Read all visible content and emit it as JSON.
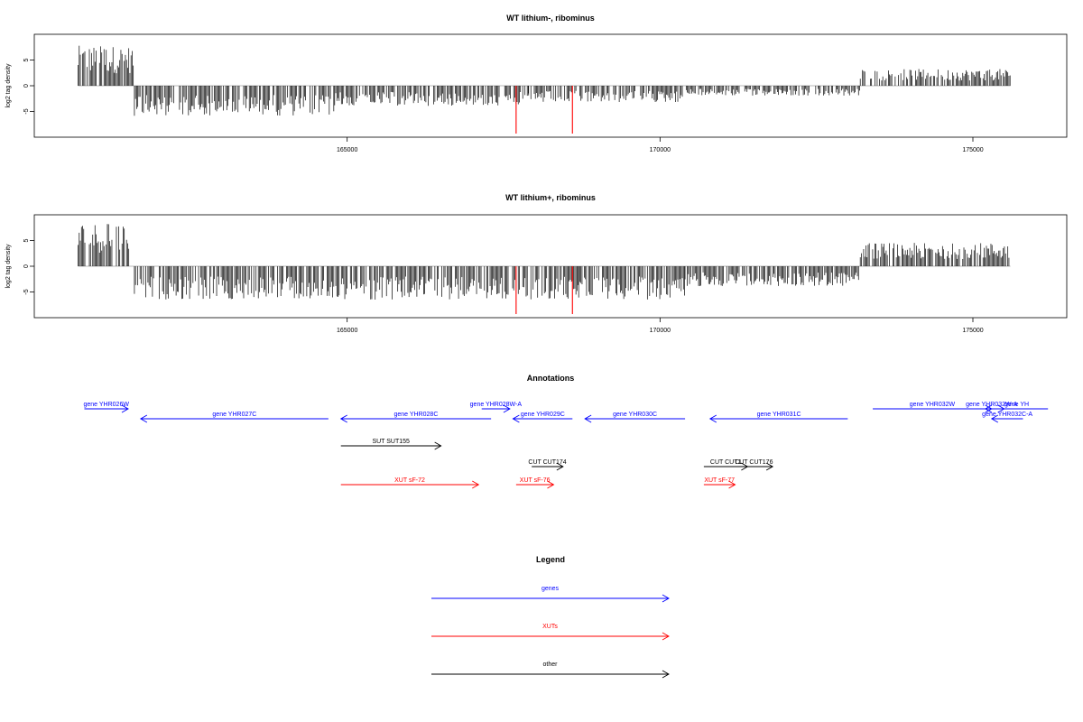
{
  "chart_data": [
    {
      "type": "bar",
      "title": "WT lithium-, ribominus",
      "ylabel": "log2 tag density",
      "xlim": [
        160000,
        176500
      ],
      "ylim": [
        -10,
        10
      ],
      "xticks": [
        165000,
        170000,
        175000
      ],
      "yticks": [
        -5,
        0,
        5
      ],
      "regions": [
        {
          "start": 160700,
          "end": 161600,
          "value": 6.0
        },
        {
          "start": 161600,
          "end": 164800,
          "value": -4.5
        },
        {
          "start": 164800,
          "end": 167900,
          "value": -3.0
        },
        {
          "start": 167900,
          "end": 168700,
          "value": -2.5
        },
        {
          "start": 168700,
          "end": 170400,
          "value": -2.5
        },
        {
          "start": 170400,
          "end": 173200,
          "value": -1.5
        },
        {
          "start": 173200,
          "end": 175600,
          "value": 2.5
        }
      ],
      "highlights": [
        {
          "x": 167700,
          "value": -9.3,
          "color": "#ff0000"
        },
        {
          "x": 168600,
          "value": -9.3,
          "color": "#ff0000"
        }
      ]
    },
    {
      "type": "bar",
      "title": "WT lithium+, ribominus",
      "ylabel": "log2 tag density",
      "xlim": [
        160000,
        176500
      ],
      "ylim": [
        -10,
        10
      ],
      "xticks": [
        165000,
        170000,
        175000
      ],
      "yticks": [
        -5,
        0,
        5
      ],
      "regions": [
        {
          "start": 160700,
          "end": 161600,
          "value": 6.5
        },
        {
          "start": 161600,
          "end": 164800,
          "value": -5.0
        },
        {
          "start": 164800,
          "end": 167900,
          "value": -5.0
        },
        {
          "start": 167900,
          "end": 168700,
          "value": -5.0
        },
        {
          "start": 168700,
          "end": 170400,
          "value": -5.0
        },
        {
          "start": 170400,
          "end": 173200,
          "value": -3.0
        },
        {
          "start": 173200,
          "end": 175600,
          "value": 3.5
        }
      ],
      "highlights": [
        {
          "x": 167700,
          "value": -9.3,
          "color": "#ff0000"
        },
        {
          "x": 168600,
          "value": -9.3,
          "color": "#ff0000"
        }
      ]
    }
  ],
  "annotations": {
    "title": "Annotations",
    "colors": {
      "genes": "#0000ff",
      "XUTs": "#ff0000",
      "other": "#000000"
    },
    "features": [
      {
        "label": "gene YHR026W",
        "start": 160800,
        "end": 161500,
        "strand": "+",
        "row": 0,
        "type": "genes"
      },
      {
        "label": "gene YHR027C",
        "start": 161700,
        "end": 164700,
        "strand": "-",
        "row": 1,
        "type": "genes"
      },
      {
        "label": "gene YHR028W-A",
        "start": 167150,
        "end": 167600,
        "strand": "+",
        "row": 0,
        "type": "genes"
      },
      {
        "label": "gene YHR028C",
        "start": 164900,
        "end": 167300,
        "strand": "-",
        "row": 1,
        "type": "genes"
      },
      {
        "label": "gene YHR029C",
        "start": 167650,
        "end": 168600,
        "strand": "-",
        "row": 1,
        "type": "genes"
      },
      {
        "label": "gene YHR030C",
        "start": 168800,
        "end": 170400,
        "strand": "-",
        "row": 1,
        "type": "genes"
      },
      {
        "label": "gene YHR031C",
        "start": 170800,
        "end": 173000,
        "strand": "-",
        "row": 1,
        "type": "genes"
      },
      {
        "label": "gene YHR032W",
        "start": 173400,
        "end": 175300,
        "strand": "+",
        "row": 0,
        "type": "genes"
      },
      {
        "label": "gene YHR032W-A",
        "start": 175100,
        "end": 175500,
        "strand": "+",
        "row": 0,
        "type": "genes"
      },
      {
        "label": "gene YH",
        "start": 175200,
        "end": 176200,
        "strand": "-",
        "row": 0,
        "type": "genes"
      },
      {
        "label": "gene YHR032C-A",
        "start": 175300,
        "end": 175800,
        "strand": "-",
        "row": 1,
        "type": "genes"
      },
      {
        "label": "SUT SUT155",
        "start": 164900,
        "end": 166500,
        "strand": "+",
        "row": 2,
        "type": "other"
      },
      {
        "label": "CUT CUT174",
        "start": 167950,
        "end": 168450,
        "strand": "+",
        "row": 3,
        "type": "other"
      },
      {
        "label": "CUT CUT1",
        "start": 170700,
        "end": 171400,
        "strand": "+",
        "row": 3,
        "type": "other"
      },
      {
        "label": "CUT CUT176",
        "start": 171200,
        "end": 171800,
        "strand": "+",
        "row": 3,
        "type": "other"
      },
      {
        "label": "XUT sF-72",
        "start": 164900,
        "end": 167100,
        "strand": "+",
        "row": 4,
        "type": "XUTs"
      },
      {
        "label": "XUT sF-76",
        "start": 167700,
        "end": 168300,
        "strand": "+",
        "row": 4,
        "type": "XUTs"
      },
      {
        "label": "XUT sF-77",
        "start": 170700,
        "end": 171200,
        "strand": "+",
        "row": 4,
        "type": "XUTs"
      }
    ]
  },
  "legend": {
    "title": "Legend",
    "items": [
      {
        "label": "genes",
        "color": "#0000ff"
      },
      {
        "label": "XUTs",
        "color": "#ff0000"
      },
      {
        "label": "other",
        "color": "#000000"
      }
    ]
  }
}
